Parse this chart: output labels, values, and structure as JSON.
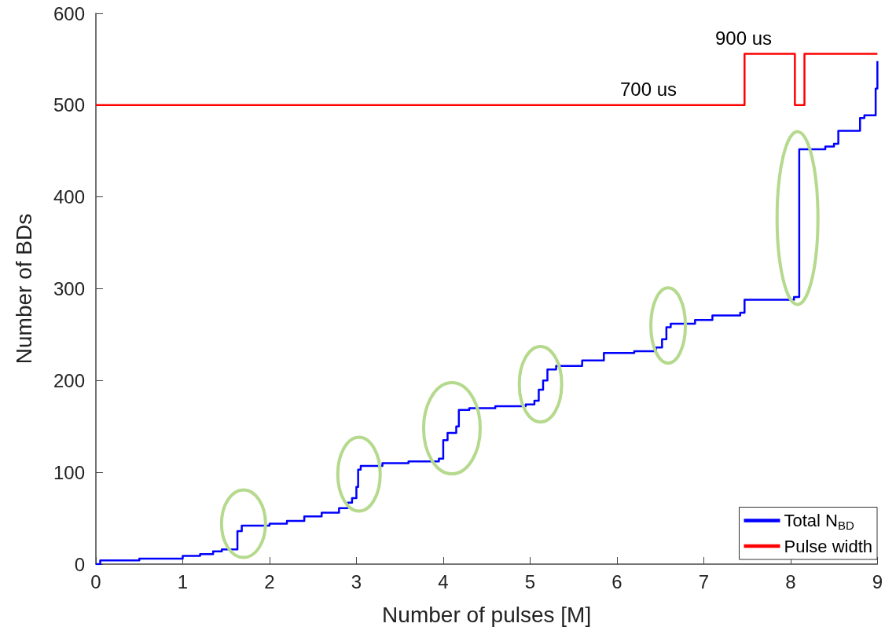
{
  "chart_data": {
    "type": "step",
    "xlabel": "Number of pulses [M]",
    "ylabel": "Number of BDs",
    "xlim": [
      0,
      9
    ],
    "xticks": [
      0,
      1,
      2,
      3,
      4,
      5,
      6,
      7,
      8,
      9
    ],
    "ylim": [
      0,
      600
    ],
    "yticks": [
      0,
      100,
      200,
      300,
      400,
      500,
      600
    ],
    "grid": false,
    "legend": "bottom right",
    "marker": "none",
    "line_style": "solid",
    "series": [
      {
        "name": "Total N$_{BD}$",
        "color": "#0000ff",
        "x": [
          0,
          0.05,
          0.5,
          1.0,
          1.2,
          1.35,
          1.45,
          1.63,
          1.68,
          2.0,
          2.2,
          2.4,
          2.6,
          2.8,
          2.9,
          2.95,
          3.0,
          3.02,
          3.05,
          3.3,
          3.6,
          3.95,
          4.0,
          4.05,
          4.15,
          4.18,
          4.3,
          4.6,
          4.95,
          5.05,
          5.1,
          5.15,
          5.2,
          5.3,
          5.6,
          5.85,
          6.2,
          6.45,
          6.52,
          6.57,
          6.62,
          6.9,
          7.1,
          7.42,
          7.47,
          8.04,
          8.1,
          8.4,
          8.5,
          8.55,
          8.8,
          8.85,
          8.98,
          9.0
        ],
        "values": [
          0,
          4,
          6,
          9,
          11,
          14,
          16,
          36,
          42,
          44,
          47,
          52,
          56,
          61,
          67,
          72,
          84,
          103,
          107,
          110,
          112,
          115,
          135,
          143,
          150,
          168,
          170,
          172,
          174,
          178,
          190,
          200,
          212,
          216,
          222,
          230,
          232,
          236,
          245,
          258,
          262,
          266,
          271,
          274,
          288,
          291,
          452,
          455,
          458,
          472,
          486,
          489,
          518,
          548
        ]
      },
      {
        "name": "Pulse width",
        "color": "#ff0000",
        "x": [
          0,
          7.47,
          8.05,
          8.16,
          9.0
        ],
        "values": [
          500,
          556,
          500,
          556,
          556
        ]
      }
    ],
    "annotations": [
      "700 us",
      "900 us"
    ]
  }
}
